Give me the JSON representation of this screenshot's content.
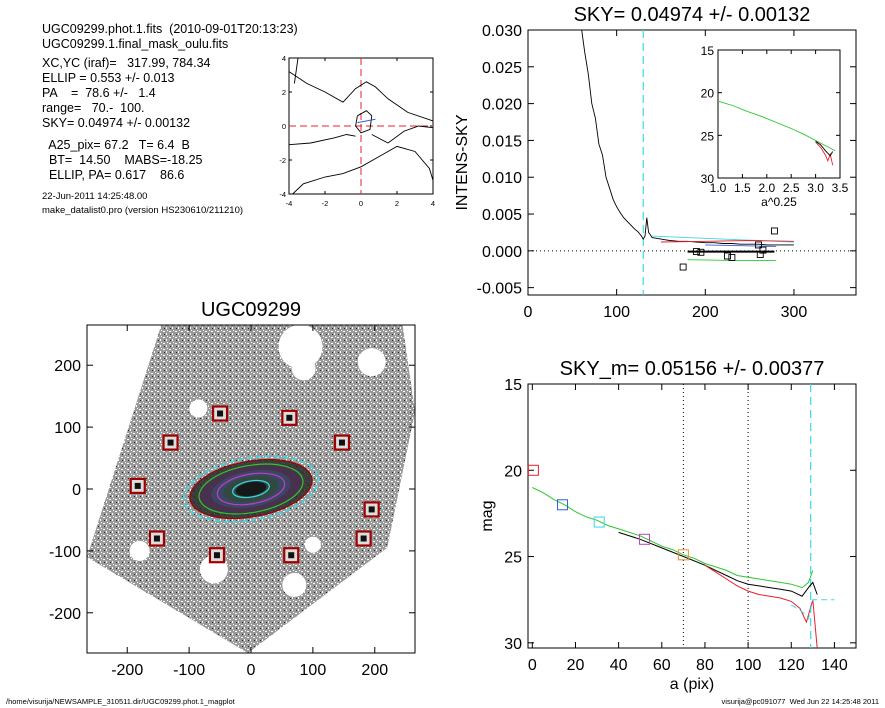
{
  "info": {
    "lines1": [
      "UGC09299.phot.1.fits  (2010-09-01T20:13:23)",
      "UGC09299.1.final_mask_oulu.fits"
    ],
    "lines2": [
      "XC,YC (iraf)=   317.99, 784.34",
      "ELLIP = 0.553 +/- 0.013",
      "PA    =  78.6 +/-   1.4",
      "range=   70.-  100.",
      "SKY= 0.04974 +/- 0.00132"
    ],
    "lines3": [
      "  A25_pix= 67.2   T= 6.4  B",
      "  BT=  14.50    MABS=-18.25",
      "  ELLIP, PA= 0.617    86.6"
    ],
    "date": "22-Jun-2011 14:25:48.00",
    "program": "make_datalist0.pro (version HS230610/211210)"
  },
  "footer": {
    "left": "/home/visurija/NEWSAMPLE_310511.dir/UGC09299.phot.1_magplot",
    "right": "visurija@pc091077  Wed Jun 22 14:25:48 2011"
  },
  "colors": {
    "black": "#000000",
    "red": "#e8202a",
    "green": "#2ec82e",
    "blue": "#3060d8",
    "cyan": "#3ad8e8",
    "magenta": "#c040c0",
    "orange": "#e89030",
    "darkred": "#a00000"
  },
  "chart_data": [
    {
      "id": "contour",
      "type": "contour",
      "xlim": [
        -4,
        4
      ],
      "ylim": [
        -4,
        4
      ],
      "xticks": [
        -4,
        -2,
        0,
        2,
        4
      ],
      "yticks": [
        -4,
        -2,
        0,
        2,
        4
      ],
      "contours": [
        [
          [
            -4,
            3.2
          ],
          [
            -3,
            2.5
          ],
          [
            -2,
            2.0
          ],
          [
            -1,
            1.4
          ],
          [
            -0.3,
            2.2
          ],
          [
            0.3,
            2.6
          ],
          [
            0.8,
            2.3
          ],
          [
            1.5,
            1.6
          ],
          [
            2.6,
            0.8
          ],
          [
            4,
            0.3
          ]
        ],
        [
          [
            -0.2,
            0.6
          ],
          [
            0.3,
            0.9
          ],
          [
            0.6,
            0.6
          ],
          [
            0.5,
            -0.2
          ],
          [
            0,
            -0.4
          ],
          [
            -0.3,
            0
          ],
          [
            -0.2,
            0.6
          ]
        ],
        [
          [
            -4,
            -1.1
          ],
          [
            -2.8,
            -1.0
          ],
          [
            -1.5,
            -0.7
          ],
          [
            -0.8,
            -0.5
          ],
          [
            -0.3,
            -0.6
          ]
        ],
        [
          [
            0.6,
            -0.5
          ],
          [
            1.5,
            -1.0
          ],
          [
            2.4,
            -0.3
          ],
          [
            3.2,
            0.0
          ],
          [
            4,
            -0.1
          ]
        ],
        [
          [
            -3.8,
            -4
          ],
          [
            -3.2,
            -3.4
          ],
          [
            -2,
            -3.0
          ],
          [
            -1,
            -2.8
          ],
          [
            0,
            -2.4
          ],
          [
            1,
            -1.8
          ],
          [
            2,
            -1.2
          ],
          [
            3,
            -1.5
          ],
          [
            3.8,
            -2.5
          ],
          [
            4,
            -3.2
          ]
        ],
        [
          [
            -3.5,
            4
          ],
          [
            -3.7,
            2.5
          ]
        ]
      ],
      "center_lines": {
        "x": 0,
        "y": 0
      }
    },
    {
      "id": "sky",
      "type": "line",
      "title": "SKY= 0.04974 +/- 0.00132",
      "ylabel": "INTENS-SKY",
      "xlim": [
        0,
        370
      ],
      "ylim": [
        -0.006,
        0.03
      ],
      "xticks": [
        0,
        100,
        200,
        300
      ],
      "yticks": [
        -0.005,
        0.0,
        0.005,
        0.01,
        0.015,
        0.02,
        0.025,
        0.03
      ],
      "ytick_labels": [
        "-0.005",
        "0.000",
        "0.005",
        "0.010",
        "0.015",
        "0.020",
        "0.025",
        "0.030"
      ],
      "vline": 130,
      "zero_line": true,
      "series": [
        {
          "color": "black",
          "x": [
            60,
            64,
            68,
            72,
            76,
            80,
            84,
            88,
            92,
            96,
            100,
            104,
            108,
            112,
            116,
            120,
            124,
            128,
            130,
            132,
            134,
            136,
            138,
            140,
            145,
            150,
            155,
            160,
            170,
            180,
            190,
            200,
            210,
            220,
            230,
            240,
            250,
            260,
            270,
            280,
            290,
            300
          ],
          "y": [
            0.0305,
            0.027,
            0.024,
            0.02,
            0.018,
            0.0145,
            0.013,
            0.01,
            0.0085,
            0.007,
            0.006,
            0.0052,
            0.0045,
            0.004,
            0.0035,
            0.003,
            0.0026,
            0.002,
            0.0016,
            0.002,
            0.0045,
            0.0025,
            0.0022,
            0.0018,
            0.0017,
            0.0016,
            0.0015,
            0.0014,
            0.0013,
            0.0013,
            0.0012,
            0.0011,
            0.0011,
            0.001,
            0.001,
            0.0009,
            0.0009,
            0.0009,
            0.0008,
            0.0008,
            0.0008,
            0.0008
          ]
        },
        {
          "color": "cyan",
          "x": [
            140,
            160,
            180,
            200,
            220,
            240,
            260,
            280,
            300
          ],
          "y": [
            0.002,
            0.0019,
            0.0018,
            0.0017,
            0.0016,
            0.0015,
            0.0014,
            0.0013,
            0.0012
          ]
        },
        {
          "color": "red",
          "x": [
            150,
            200,
            250,
            300
          ],
          "y": [
            0.0012,
            0.0013,
            0.0014,
            0.0013
          ]
        },
        {
          "color": "blue",
          "x": [
            200,
            240,
            280
          ],
          "y": [
            0.0008,
            0.0007,
            0.0006
          ]
        },
        {
          "color": "green",
          "x": [
            180,
            230,
            280
          ],
          "y": [
            -0.0012,
            -0.0013,
            -0.0013
          ]
        }
      ],
      "segments": [
        {
          "color": "black",
          "x": [
            180,
            278
          ],
          "y": [
            -0.0001,
            -0.0001
          ]
        }
      ],
      "boxes": [
        [
          175,
          -0.0022
        ],
        [
          190,
          -0.0001
        ],
        [
          195,
          -0.0002
        ],
        [
          225,
          -0.0007
        ],
        [
          230,
          -0.0009
        ],
        [
          260,
          0.0008
        ],
        [
          262,
          -0.0005
        ],
        [
          278,
          0.0027
        ],
        [
          265,
          0.0001
        ]
      ],
      "inset": {
        "xlabel": "a^0.25",
        "xlim": [
          1.0,
          3.5
        ],
        "ylim": [
          15,
          30
        ],
        "y_reversed": true,
        "xticks": [
          1.0,
          1.5,
          2.0,
          2.5,
          3.0,
          3.5
        ],
        "xtick_labels": [
          "1.0",
          "1.5",
          "2.0",
          "2.5",
          "3.0",
          "3.5"
        ],
        "yticks": [
          15,
          20,
          25,
          30
        ],
        "series": [
          {
            "color": "green",
            "x": [
              1.0,
              1.3,
              1.6,
              1.9,
              2.2,
              2.5,
              2.8,
              3.0,
              3.2,
              3.3,
              3.4
            ],
            "y": [
              21.0,
              21.5,
              22.2,
              22.8,
              23.5,
              24.2,
              25.0,
              25.6,
              26.2,
              26.5,
              26.8
            ]
          },
          {
            "color": "red",
            "x": [
              3.0,
              3.1,
              3.2,
              3.25,
              3.3,
              3.35
            ],
            "y": [
              25.8,
              26.4,
              27.3,
              28.0,
              27.2,
              28.5
            ]
          },
          {
            "color": "black",
            "x": [
              3.0,
              3.1,
              3.2,
              3.3,
              3.35
            ],
            "y": [
              25.7,
              26.1,
              26.8,
              27.4,
              26.9
            ]
          }
        ]
      }
    },
    {
      "id": "image",
      "type": "image",
      "title": "UGC09299",
      "xlim": [
        -265,
        265
      ],
      "ylim": [
        -265,
        265
      ],
      "xticks": [
        -200,
        -100,
        0,
        100,
        200
      ],
      "yticks": [
        -200,
        -100,
        0,
        100,
        200
      ],
      "field_corners": [
        [
          -145,
          265
        ],
        [
          245,
          265
        ],
        [
          265,
          125
        ],
        [
          220,
          -95
        ],
        [
          -5,
          -265
        ],
        [
          -265,
          -110
        ]
      ],
      "ellipses": [
        {
          "a": 110,
          "b": 50,
          "angle": -10,
          "color": "cyan",
          "dash": true
        },
        {
          "a": 100,
          "b": 45,
          "angle": -10,
          "color": "darkred"
        },
        {
          "a": 85,
          "b": 38,
          "angle": -10,
          "color": "green"
        },
        {
          "a": 55,
          "b": 24,
          "angle": -10,
          "color": "magenta"
        },
        {
          "a": 30,
          "b": 13,
          "angle": -10,
          "color": "cyan"
        }
      ],
      "star_boxes": [
        [
          -50,
          122
        ],
        [
          62,
          115
        ],
        [
          -130,
          75
        ],
        [
          147,
          75
        ],
        [
          -183,
          5
        ],
        [
          195,
          -33
        ],
        [
          -152,
          -80
        ],
        [
          182,
          -80
        ],
        [
          -55,
          -107
        ],
        [
          65,
          -107
        ]
      ]
    },
    {
      "id": "mag",
      "type": "line",
      "title": "SKY_m=  0.05156 +/- 0.00377",
      "xlabel": "a (pix)",
      "ylabel": "mag",
      "xlim": [
        -2,
        150
      ],
      "ylim": [
        15,
        30.3
      ],
      "y_reversed": true,
      "xticks": [
        0,
        20,
        40,
        60,
        80,
        100,
        120,
        140
      ],
      "yticks": [
        15,
        20,
        25,
        30
      ],
      "vlines": [
        {
          "x": 70,
          "style": "dotted",
          "color": "black"
        },
        {
          "x": 100,
          "style": "dotted",
          "color": "black"
        },
        {
          "x": 129,
          "style": "dashed",
          "color": "cyan"
        }
      ],
      "series": [
        {
          "color": "green",
          "x": [
            0,
            5,
            10,
            15,
            20,
            25,
            30,
            35,
            40,
            45,
            50,
            55,
            60,
            65,
            70,
            75,
            80,
            85,
            90,
            95,
            100,
            105,
            110,
            115,
            120,
            125,
            128,
            130
          ],
          "y": [
            21.0,
            21.3,
            21.7,
            22.0,
            22.4,
            22.7,
            22.9,
            23.2,
            23.4,
            23.6,
            23.8,
            24.1,
            24.4,
            24.6,
            24.9,
            25.1,
            25.4,
            25.6,
            25.8,
            26.1,
            26.2,
            26.3,
            26.4,
            26.5,
            26.6,
            26.8,
            26.5,
            25.8
          ]
        },
        {
          "color": "black",
          "x": [
            40,
            50,
            60,
            70,
            80,
            85,
            90,
            95,
            100,
            105,
            110,
            115,
            120,
            125,
            128,
            130,
            132
          ],
          "y": [
            23.6,
            24.0,
            24.5,
            25.0,
            25.5,
            25.8,
            26.1,
            26.4,
            26.6,
            26.7,
            26.8,
            26.9,
            27.0,
            27.3,
            26.8,
            26.5,
            27.2
          ]
        },
        {
          "color": "red",
          "x": [
            80,
            85,
            90,
            95,
            100,
            105,
            110,
            115,
            120,
            124,
            127,
            130,
            132
          ],
          "y": [
            25.5,
            25.9,
            26.3,
            26.7,
            27.0,
            27.2,
            27.3,
            27.4,
            27.6,
            28.0,
            28.8,
            27.5,
            30.3
          ]
        },
        {
          "color": "cyan",
          "x": [
            120,
            125,
            128,
            130,
            140
          ],
          "y": [
            27.8,
            28.2,
            28.6,
            27.5,
            27.5
          ]
        }
      ],
      "boxes": [
        {
          "x": 0.5,
          "y": 20.0,
          "color": "red"
        },
        {
          "x": 14,
          "y": 22.0,
          "color": "blue"
        },
        {
          "x": 31,
          "y": 23.0,
          "color": "cyan"
        },
        {
          "x": 52,
          "y": 24.0,
          "color": "magenta"
        },
        {
          "x": 70,
          "y": 24.9,
          "color": "orange"
        }
      ]
    }
  ]
}
